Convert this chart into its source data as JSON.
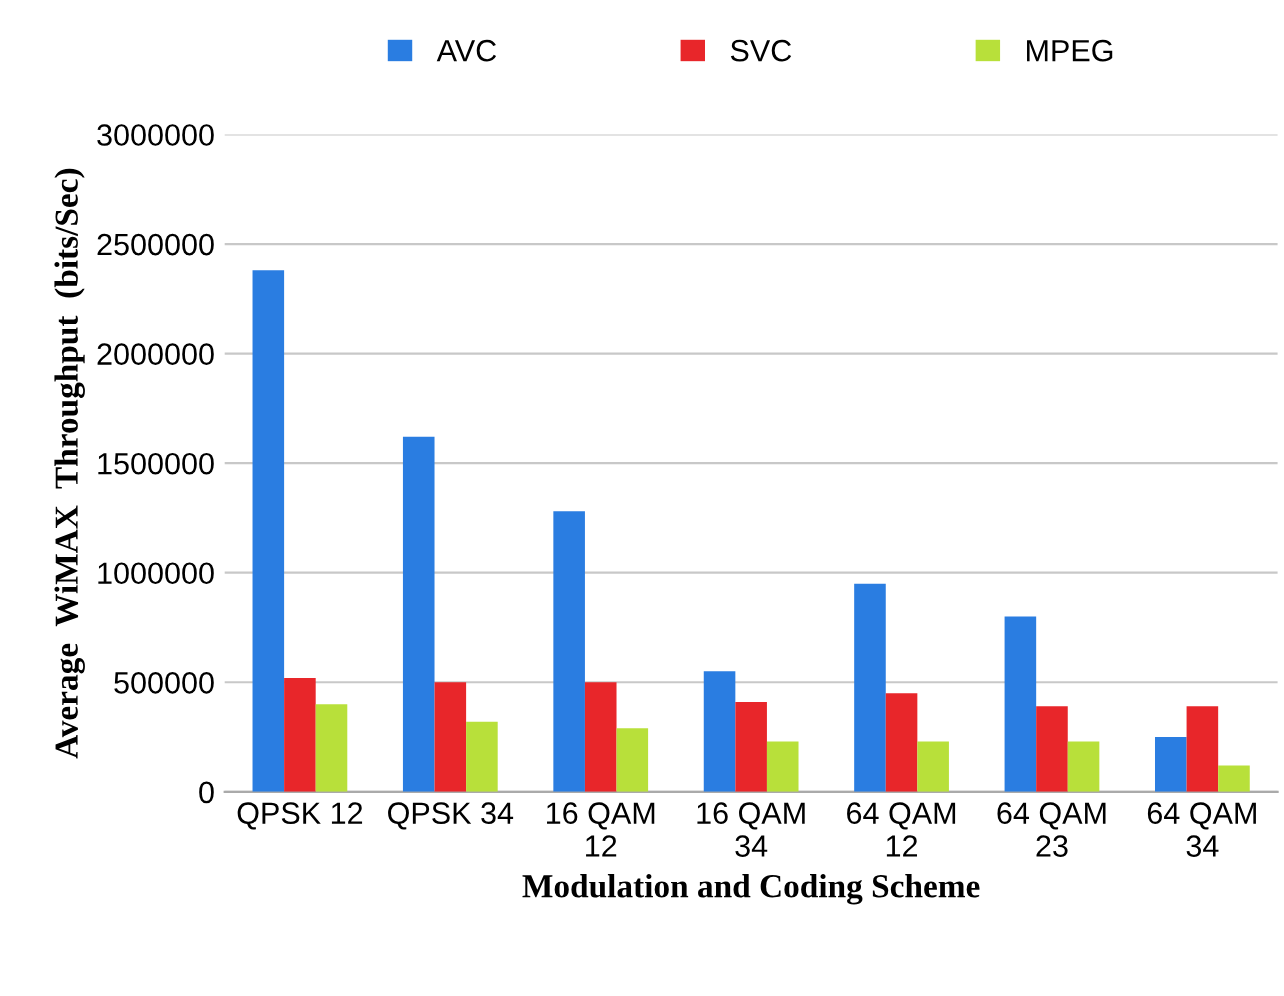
{
  "chart_data": {
    "type": "bar",
    "categories": [
      "QPSK 12",
      "QPSK 34",
      "16 QAM\n12",
      "16 QAM\n34",
      "64 QAM\n12",
      "64 QAM\n23",
      "64 QAM\n34"
    ],
    "series": [
      {
        "name": "AVC",
        "color": "#2a7de1",
        "values": [
          2380000,
          1620000,
          1280000,
          550000,
          950000,
          800000,
          250000
        ]
      },
      {
        "name": "SVC",
        "color": "#e8262a",
        "values": [
          520000,
          500000,
          500000,
          410000,
          450000,
          390000,
          390000
        ]
      },
      {
        "name": "MPEG",
        "color": "#b8e03a",
        "values": [
          400000,
          320000,
          290000,
          230000,
          230000,
          230000,
          120000
        ]
      }
    ],
    "xlabel": "Modulation and Coding Scheme",
    "ylabel": "Average  WiMAX  Throughput  (bits/Sec)",
    "ylim": [
      0,
      3000000
    ],
    "yticks": [
      0,
      500000,
      1000000,
      1500000,
      2000000,
      2500000,
      3000000
    ],
    "grid": "y",
    "legend": "top"
  }
}
